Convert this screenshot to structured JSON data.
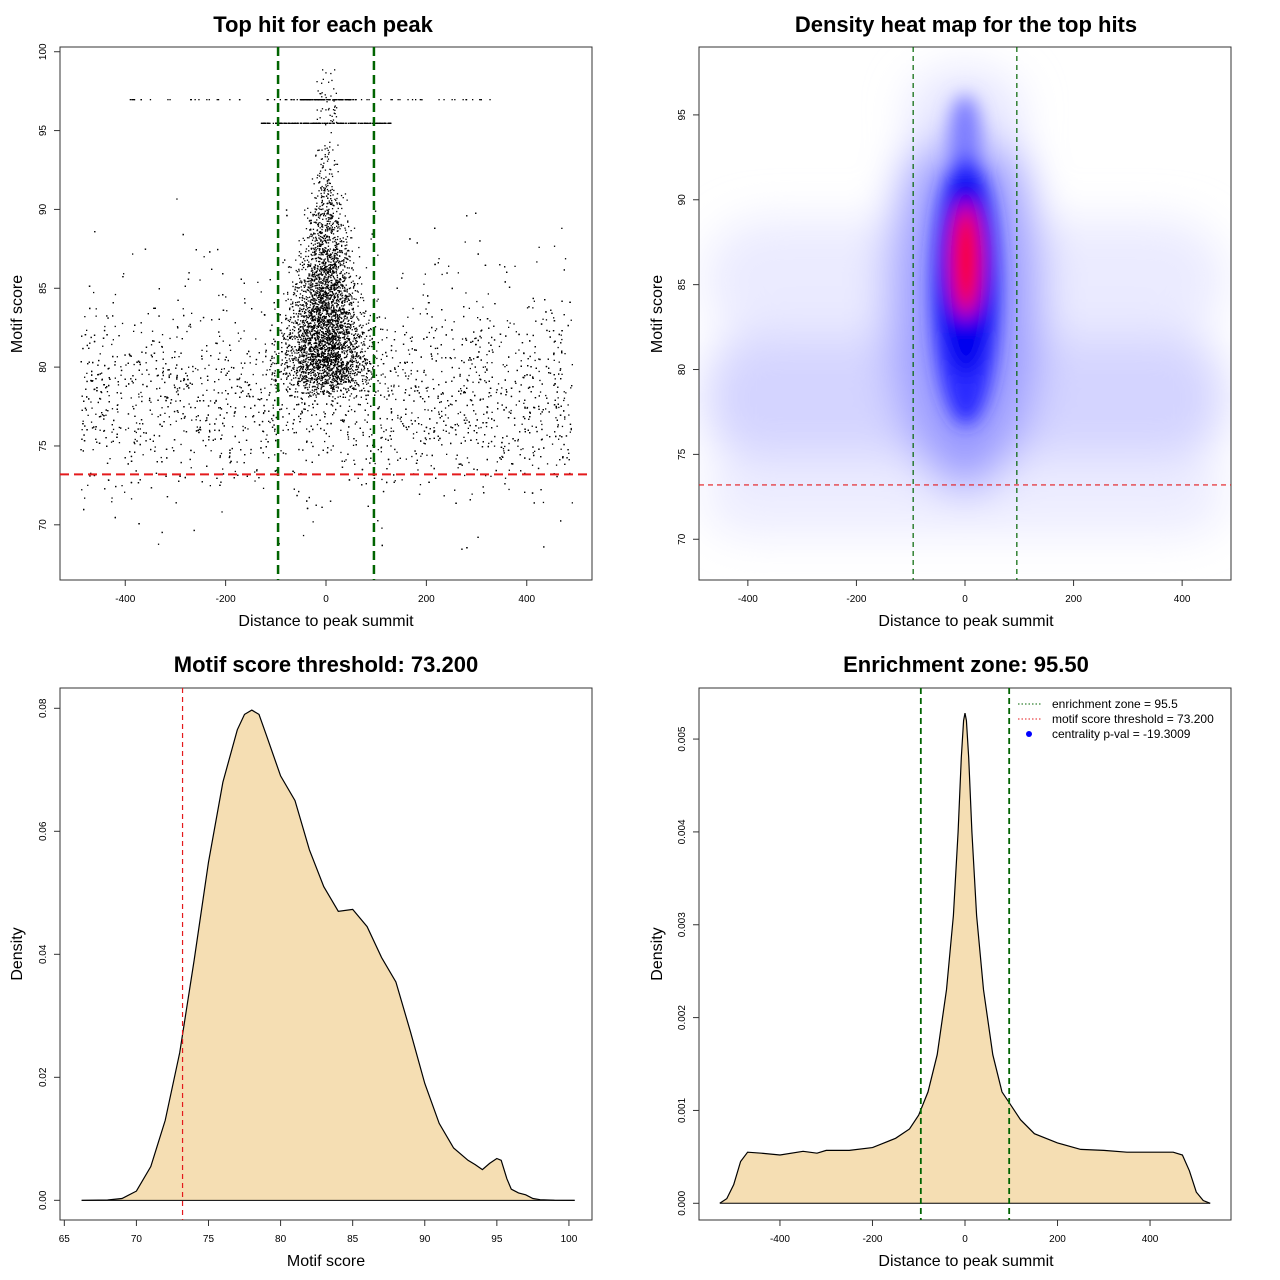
{
  "chart_data": [
    {
      "type": "scatter",
      "title": "Top hit for each peak",
      "xlabel": "Distance to peak summit",
      "ylabel": "Motif score",
      "xlim": [
        -530,
        530
      ],
      "ylim": [
        66.5,
        100.3
      ],
      "xticks": [
        -400,
        -200,
        0,
        200,
        400
      ],
      "yticks": [
        70,
        75,
        80,
        85,
        90,
        95,
        100
      ],
      "xtick_labels": [
        "-400",
        "-200",
        "0",
        "200",
        "400"
      ],
      "ytick_labels": [
        "70",
        "75",
        "80",
        "85",
        "90",
        "95",
        "100"
      ],
      "enrichment_zone": [
        -95.5,
        95.5
      ],
      "threshold": 73.2,
      "distance_range": [
        -490,
        490
      ],
      "score_mode": 78,
      "discrete_score_levels": [
        97,
        95.5
      ],
      "colors": {
        "points": "#000000",
        "zone": "#006400",
        "threshold": "#e41a1c"
      }
    },
    {
      "type": "heatmap",
      "title": "Density heat map for the top hits",
      "xlabel": "Distance to peak summit",
      "ylabel": "Motif score",
      "xlim": [
        -490,
        490
      ],
      "ylim": [
        67.6,
        99
      ],
      "xticks": [
        -400,
        -200,
        0,
        200,
        400
      ],
      "yticks": [
        70,
        75,
        80,
        85,
        90,
        95
      ],
      "xtick_labels": [
        "-400",
        "-200",
        "0",
        "200",
        "400"
      ],
      "ytick_labels": [
        "70",
        "75",
        "80",
        "85",
        "90",
        "95"
      ],
      "enrichment_zone": [
        -95.5,
        95.5
      ],
      "threshold": 73.2,
      "peak_center": [
        0,
        86.5
      ],
      "colors": {
        "low": "#ffffff",
        "mid": "#0000ff",
        "high": "#ff0000",
        "zone": "#006400",
        "threshold": "#e41a1c"
      }
    },
    {
      "type": "area",
      "title": "Motif score threshold: 73.200",
      "xlabel": "Motif score",
      "ylabel": "Density",
      "xlim": [
        64.7,
        101.6
      ],
      "ylim": [
        -0.0032,
        0.0833
      ],
      "xticks": [
        65,
        70,
        75,
        80,
        85,
        90,
        95,
        100
      ],
      "yticks": [
        0,
        0.02,
        0.04,
        0.06,
        0.08
      ],
      "xtick_labels": [
        "65",
        "70",
        "75",
        "80",
        "85",
        "90",
        "95",
        "100"
      ],
      "ytick_labels": [
        "0.00",
        "0.02",
        "0.04",
        "0.06",
        "0.08"
      ],
      "threshold": 73.2,
      "x": [
        66.2,
        68,
        69,
        70,
        71,
        72,
        73,
        74,
        75,
        76,
        77,
        77.5,
        78,
        78.5,
        79,
        80,
        81,
        82,
        83,
        84,
        85,
        86,
        87,
        88,
        89,
        90,
        91,
        92,
        93,
        93.5,
        94,
        94.5,
        95,
        95.3,
        95.7,
        96,
        96.5,
        97,
        97.5,
        98,
        99,
        100.4
      ],
      "values": [
        0,
        5e-05,
        0.0003,
        0.0015,
        0.0055,
        0.013,
        0.024,
        0.039,
        0.055,
        0.068,
        0.0765,
        0.079,
        0.0797,
        0.079,
        0.0757,
        0.069,
        0.065,
        0.057,
        0.051,
        0.047,
        0.0473,
        0.0445,
        0.0395,
        0.0355,
        0.0275,
        0.019,
        0.0125,
        0.0085,
        0.0065,
        0.0058,
        0.005,
        0.006,
        0.0068,
        0.0065,
        0.0035,
        0.0018,
        0.0012,
        0.0009,
        0.0003,
        0.0001,
        2e-05,
        0
      ],
      "colors": {
        "fill": "#f5deb3",
        "line": "#000000",
        "threshold": "#e41a1c"
      }
    },
    {
      "type": "area",
      "title": "Enrichment zone: 95.50",
      "xlabel": "Distance to peak summit",
      "ylabel": "Density",
      "xlim": [
        -575,
        575
      ],
      "ylim": [
        -0.00018,
        0.00555
      ],
      "xticks": [
        -400,
        -200,
        0,
        200,
        400
      ],
      "yticks": [
        0,
        0.001,
        0.002,
        0.003,
        0.004,
        0.005
      ],
      "xtick_labels": [
        "-400",
        "-200",
        "0",
        "200",
        "400"
      ],
      "ytick_labels": [
        "0.000",
        "0.001",
        "0.002",
        "0.003",
        "0.004",
        "0.005"
      ],
      "enrichment_zone": [
        -95.5,
        95.5
      ],
      "x": [
        -530,
        -515,
        -500,
        -485,
        -470,
        -440,
        -400,
        -350,
        -320,
        -300,
        -250,
        -200,
        -150,
        -120,
        -100,
        -80,
        -60,
        -40,
        -25,
        -15,
        -8,
        -3,
        0,
        3,
        8,
        15,
        25,
        40,
        60,
        80,
        100,
        120,
        150,
        200,
        250,
        300,
        350,
        400,
        450,
        470,
        485,
        500,
        515,
        530
      ],
      "values": [
        0,
        5e-05,
        0.0002,
        0.00045,
        0.00055,
        0.00054,
        0.00052,
        0.00056,
        0.00054,
        0.00057,
        0.00057,
        0.0006,
        0.0007,
        0.0008,
        0.00095,
        0.0012,
        0.0016,
        0.0023,
        0.0031,
        0.004,
        0.0048,
        0.0052,
        0.00528,
        0.0052,
        0.0048,
        0.004,
        0.0031,
        0.0023,
        0.0016,
        0.0012,
        0.00105,
        0.0009,
        0.00075,
        0.00065,
        0.00058,
        0.00057,
        0.00055,
        0.00055,
        0.00055,
        0.00052,
        0.00035,
        0.00012,
        3e-05,
        0
      ],
      "legend": [
        {
          "label": "enrichment zone = 95.5",
          "style": "dotted-line",
          "color": "#006400"
        },
        {
          "label": "motif score threshold = 73.200",
          "style": "dotted-line",
          "color": "#e41a1c"
        },
        {
          "label": "centrality p-val = -19.3009",
          "style": "point",
          "color": "#0000ff"
        }
      ],
      "legend_position": "top-right",
      "colors": {
        "fill": "#f5deb3",
        "line": "#000000",
        "zone": "#006400"
      }
    }
  ]
}
